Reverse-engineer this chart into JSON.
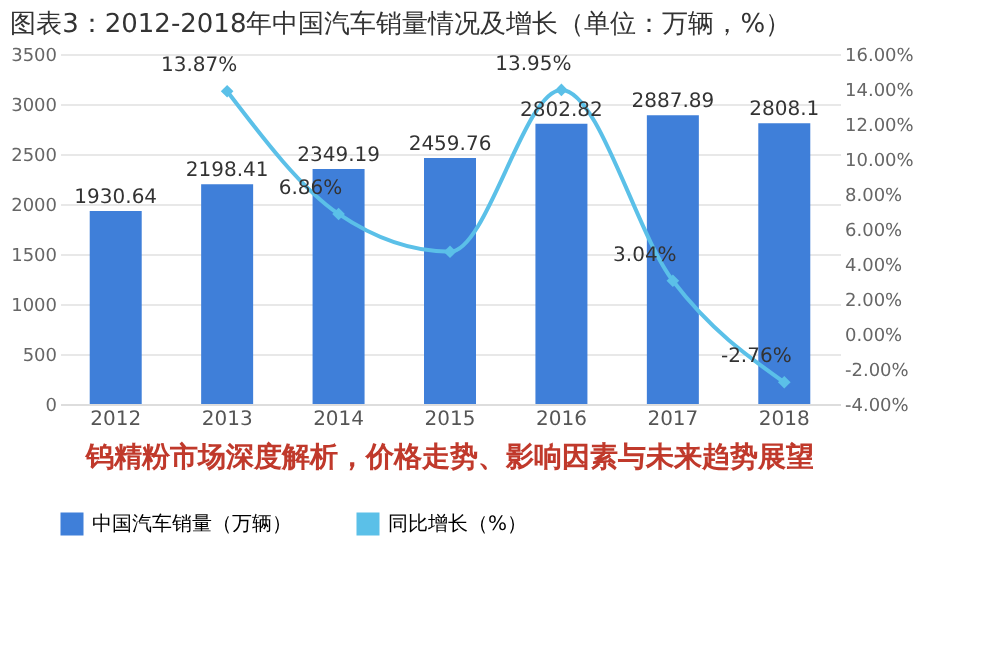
{
  "chart_data": {
    "type": "bar",
    "title": "图表3：2012-2018年中国汽车销量情况及增长（单位：万辆，%）",
    "annotations": [
      "钨精粉市场深度解析，价格走势、影响因素与未来趋势展望"
    ],
    "categories": [
      "2012",
      "2013",
      "2014",
      "2015",
      "2016",
      "2017",
      "2018"
    ],
    "series": [
      {
        "name": "中国汽车销量（万辆）",
        "color": "#3f7fd9",
        "values": [
          1930.64,
          2198.41,
          2349.19,
          2459.76,
          2802.82,
          2887.89,
          2808.1
        ]
      },
      {
        "name": "同比增长（%）",
        "type": "line",
        "axis": "y2",
        "color": "#5bc0e8",
        "marker": "diamond",
        "values": [
          null,
          13.87,
          6.86,
          4.7,
          13.95,
          3.04,
          -2.76
        ],
        "value_labels": [
          null,
          "13.87%",
          "6.86%",
          null,
          "13.95%",
          "3.04%",
          "-2.76%"
        ]
      }
    ],
    "data_labels": true,
    "ylim": [
      0,
      3500
    ],
    "yticks": [
      0,
      500,
      1000,
      1500,
      2000,
      2500,
      3000,
      3500
    ],
    "y2lim": [
      -4,
      16
    ],
    "y2ticks": [
      {
        "value": -4,
        "label": "-4.00%"
      },
      {
        "value": -2,
        "label": "-2.00%"
      },
      {
        "value": 0,
        "label": "0.00%"
      },
      {
        "value": 2,
        "label": "2.00%"
      },
      {
        "value": 4,
        "label": "4.00%"
      },
      {
        "value": 6,
        "label": "6.00%"
      },
      {
        "value": 8,
        "label": "8.00%"
      },
      {
        "value": 10,
        "label": "10.00%"
      },
      {
        "value": 12,
        "label": "12.00%"
      },
      {
        "value": 14,
        "label": "14.00%"
      },
      {
        "value": 16,
        "label": "16.00%"
      }
    ],
    "grid": "y",
    "legend": "bottom"
  }
}
